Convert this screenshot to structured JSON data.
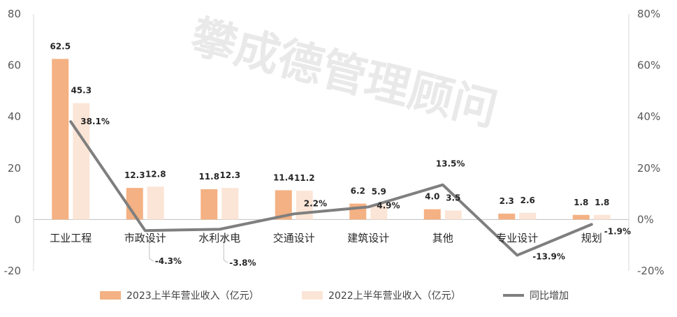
{
  "chart_data": {
    "type": "bar",
    "watermark": "攀成德管理顾问",
    "categories": [
      "工业工程",
      "市政设计",
      "水利水电",
      "交通设计",
      "建筑设计",
      "其他",
      "专业设计",
      "规划"
    ],
    "series": [
      {
        "name": "2023上半年营业收入（亿元）",
        "type": "bar",
        "axis": "left",
        "color": "#F4B183",
        "values": [
          62.5,
          12.3,
          11.8,
          11.4,
          6.2,
          4.0,
          2.3,
          1.8
        ],
        "labels": [
          "62.5",
          "12.3",
          "11.8",
          "11.4",
          "6.2",
          "4.0",
          "2.3",
          "1.8"
        ]
      },
      {
        "name": "2022上半年营业收入（亿元）",
        "type": "bar",
        "axis": "left",
        "color": "#FBE5D6",
        "values": [
          45.3,
          12.8,
          12.3,
          11.2,
          5.9,
          3.5,
          2.6,
          1.8
        ],
        "labels": [
          "45.3",
          "12.8",
          "12.3",
          "11.2",
          "5.9",
          "3.5",
          "2.6",
          "1.8"
        ]
      },
      {
        "name": "同比增加",
        "type": "line",
        "axis": "right",
        "color": "#7F7F7F",
        "values": [
          38.1,
          -4.3,
          -3.8,
          2.2,
          4.9,
          13.5,
          -13.9,
          -1.9
        ],
        "labels": [
          "38.1%",
          "-4.3%",
          "-3.8%",
          "2.2%",
          "4.9%",
          "13.5%",
          "-13.9%",
          "-1.9%"
        ]
      }
    ],
    "y_left": {
      "range": [
        -20,
        80
      ],
      "ticks": [
        "-20",
        "0",
        "20",
        "40",
        "60",
        "80"
      ],
      "tick_values": [
        -20,
        0,
        20,
        40,
        60,
        80
      ]
    },
    "y_right": {
      "range": [
        -20,
        80
      ],
      "ticks": [
        "-20%",
        "0%",
        "20%",
        "40%",
        "60%",
        "80%"
      ],
      "tick_values": [
        -20,
        0,
        20,
        40,
        60,
        80
      ]
    },
    "legend_position": "bottom",
    "grid": false
  }
}
